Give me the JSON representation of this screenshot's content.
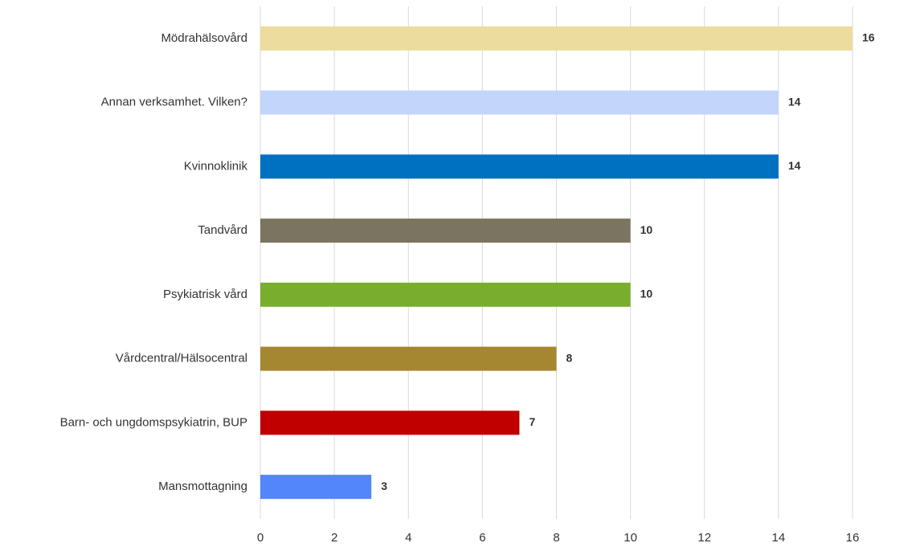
{
  "chart_data": {
    "type": "bar",
    "orientation": "horizontal",
    "categories": [
      "Mödrahälsovård",
      "Annan verksamhet. Vilken?",
      "Kvinnoklinik",
      "Tandvård",
      "Psykiatrisk vård",
      "Vårdcentral/Hälsocentral",
      "Barn- och ungdomspsykiatrin, BUP",
      "Mansmottagning"
    ],
    "values": [
      16,
      14,
      14,
      10,
      10,
      8,
      7,
      3
    ],
    "colors": [
      "#ecdc9e",
      "#c3d5fb",
      "#0070c0",
      "#7b7460",
      "#78ad2e",
      "#a58731",
      "#c00000",
      "#5286fa"
    ],
    "xlim": [
      0,
      16
    ],
    "xticks": [
      0,
      2,
      4,
      6,
      8,
      10,
      12,
      14,
      16
    ],
    "grid": true
  }
}
